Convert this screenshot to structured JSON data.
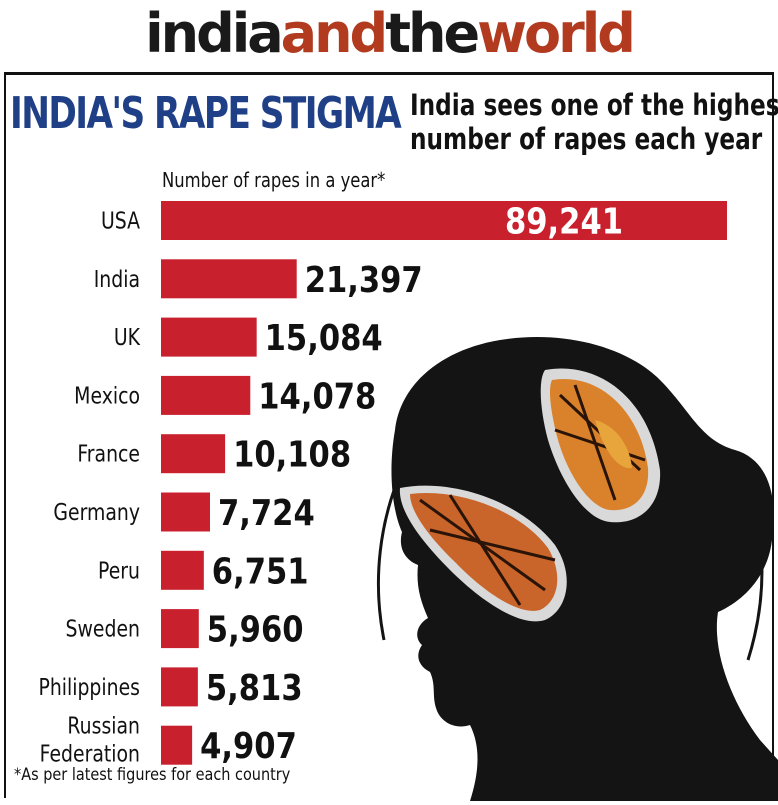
{
  "masthead": {
    "part1": "india",
    "part2": "and",
    "part3": "the",
    "part4": "world"
  },
  "headline": "INDIA'S RAPE STIGMA",
  "subhead_line1": "India sees one of the highest",
  "subhead_line2": "number of rapes each year",
  "footnote": "*As per latest figures for each country",
  "colors": {
    "bar": "#c8202d",
    "headline": "#1f3f86",
    "masthead_accent": "#b23a1e"
  },
  "illustration": "silhouette of a woman's head with monarch butterflies",
  "chart_data": {
    "type": "bar",
    "orientation": "horizontal",
    "title": "Number of rapes in a year*",
    "categories": [
      "USA",
      "India",
      "UK",
      "Mexico",
      "France",
      "Germany",
      "Peru",
      "Sweden",
      "Philippines",
      "Russian Federation"
    ],
    "category_lines": [
      [
        "USA"
      ],
      [
        "India"
      ],
      [
        "UK"
      ],
      [
        "Mexico"
      ],
      [
        "France"
      ],
      [
        "Germany"
      ],
      [
        "Peru"
      ],
      [
        "Sweden"
      ],
      [
        "Philippines"
      ],
      [
        "Russian",
        "Federation"
      ]
    ],
    "values": [
      89241,
      21397,
      15084,
      14078,
      10108,
      7724,
      6751,
      5960,
      5813,
      4907
    ],
    "value_labels": [
      "89,241",
      "21,397",
      "15,084",
      "14,078",
      "10,108",
      "7,724",
      "6,751",
      "5,960",
      "5,813",
      "4,907"
    ],
    "xlim": [
      0,
      89241
    ],
    "grid": false,
    "legend": "none"
  }
}
